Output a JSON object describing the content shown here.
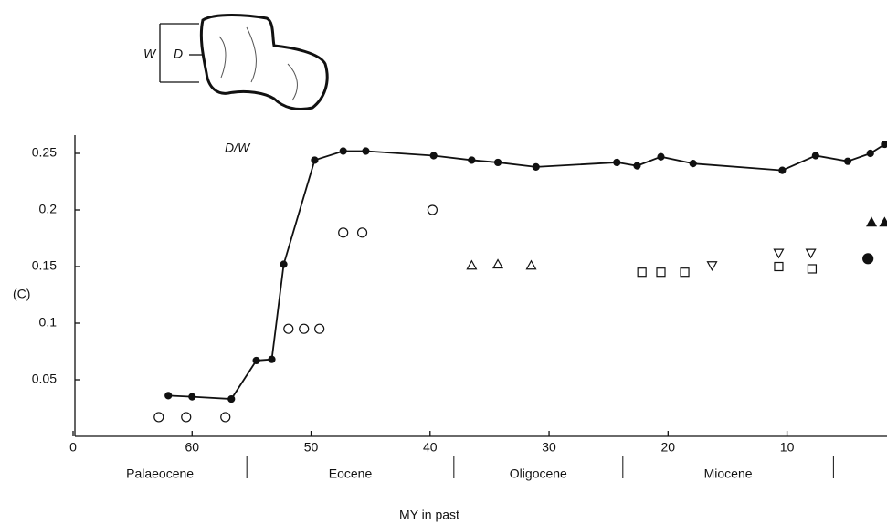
{
  "chart_data": {
    "type": "scatter",
    "ylabel": "(C)",
    "xlabel": "MY  in  past",
    "annotation": "D/W",
    "diagram_labels": [
      "W",
      "D"
    ],
    "xlim": [
      70,
      1.6
    ],
    "ylim": [
      0,
      0.265
    ],
    "xticks": [
      {
        "value": 70,
        "label": "0"
      },
      60,
      50,
      40,
      30,
      20,
      10
    ],
    "yticks": [
      0.05,
      0.1,
      0.15,
      0.2,
      0.25
    ],
    "epoch_boundaries": [
      55.4,
      38,
      23.8,
      6.1
    ],
    "epochs": [
      "Palaeocene",
      "Eocene",
      "Oligocene",
      "Miocene"
    ],
    "series": [
      {
        "marker": "circle",
        "filled": true,
        "line": true,
        "color": "#111111",
        "x": [
          62.0,
          60.0,
          56.7,
          54.6,
          53.3,
          52.3,
          49.7,
          47.3,
          45.4,
          39.7,
          36.5,
          34.3,
          31.1,
          24.3,
          22.6,
          20.6,
          17.9,
          10.4,
          7.6,
          4.9,
          3.0,
          1.8
        ],
        "values": [
          0.036,
          0.035,
          0.033,
          0.067,
          0.068,
          0.152,
          0.244,
          0.252,
          0.252,
          0.248,
          0.244,
          0.242,
          0.238,
          0.242,
          0.239,
          0.247,
          0.241,
          0.235,
          0.248,
          0.243,
          0.25,
          0.258
        ]
      },
      {
        "marker": "circle",
        "filled": false,
        "line": false,
        "color": "#111111",
        "x": [
          62.8,
          60.5,
          57.2,
          51.9,
          50.6,
          49.3,
          47.3,
          45.7,
          39.8
        ],
        "values": [
          0.017,
          0.017,
          0.017,
          0.095,
          0.095,
          0.095,
          0.18,
          0.18,
          0.2
        ]
      },
      {
        "marker": "triangle",
        "filled": false,
        "line": false,
        "color": "#111111",
        "x": [
          36.5,
          34.3,
          31.5
        ],
        "values": [
          0.151,
          0.152,
          0.151
        ]
      },
      {
        "marker": "square",
        "filled": false,
        "line": false,
        "color": "#111111",
        "x": [
          22.2,
          20.6,
          18.6,
          10.7,
          7.9
        ],
        "values": [
          0.145,
          0.145,
          0.145,
          0.15,
          0.148
        ]
      },
      {
        "marker": "triangle-down",
        "filled": false,
        "line": false,
        "color": "#111111",
        "x": [
          16.3,
          10.7,
          8.0
        ],
        "values": [
          0.151,
          0.162,
          0.162
        ]
      },
      {
        "marker": "triangle",
        "filled": true,
        "line": false,
        "color": "#111111",
        "x": [
          2.9,
          1.8
        ],
        "values": [
          0.189,
          0.189
        ]
      },
      {
        "marker": "circle",
        "filled": true,
        "line": false,
        "color": "#111111",
        "x": [
          3.2
        ],
        "values": [
          0.157
        ]
      }
    ]
  }
}
